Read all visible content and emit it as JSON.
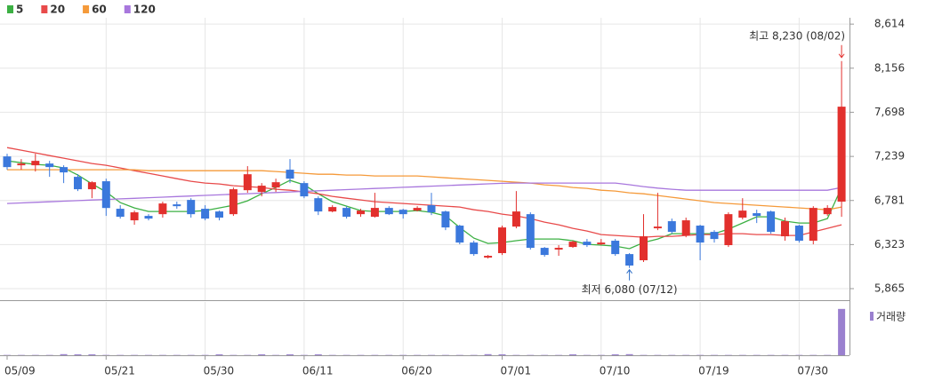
{
  "chart_data": {
    "type": "candlestick",
    "categories": [
      "05/09",
      null,
      null,
      null,
      null,
      null,
      null,
      "05/21",
      null,
      null,
      null,
      null,
      null,
      null,
      "05/30",
      null,
      null,
      null,
      null,
      null,
      null,
      "06/11",
      null,
      null,
      null,
      null,
      null,
      null,
      "06/20",
      null,
      null,
      null,
      null,
      null,
      null,
      "07/01",
      null,
      null,
      null,
      null,
      null,
      null,
      "07/10",
      null,
      null,
      null,
      null,
      null,
      null,
      "07/19",
      null,
      null,
      null,
      null,
      null,
      null,
      "07/30",
      null,
      null,
      null
    ],
    "open": [
      7239,
      7147,
      7147,
      7165,
      7128,
      7027,
      6898,
      6981,
      6695,
      6575,
      6621,
      6639,
      6741,
      6787,
      6695,
      6667,
      6639,
      6888,
      6870,
      6916,
      7101,
      6962,
      6805,
      6667,
      6704,
      6639,
      6612,
      6704,
      6685,
      6676,
      6732,
      6667,
      6520,
      6344,
      6188,
      6234,
      6510,
      6639,
      6289,
      6271,
      6298,
      6353,
      6326,
      6363,
      6224,
      6160,
      6492,
      6566,
      6418,
      6520,
      6455,
      6317,
      6603,
      6649,
      6667,
      6409,
      6520,
      6363,
      6639,
      6769
    ],
    "high": [
      7267,
      7211,
      7267,
      7193,
      7147,
      7054,
      6981,
      7008,
      6732,
      6676,
      6639,
      6769,
      6769,
      6805,
      6732,
      6676,
      6916,
      7138,
      6962,
      7008,
      7211,
      6981,
      6824,
      6732,
      6722,
      6695,
      6861,
      6722,
      6695,
      6722,
      6861,
      6676,
      6529,
      6363,
      6215,
      6520,
      6879,
      6658,
      6298,
      6317,
      6363,
      6381,
      6381,
      6381,
      6234,
      6639,
      6861,
      6593,
      6603,
      6529,
      6473,
      6658,
      6805,
      6685,
      6676,
      6603,
      6529,
      6722,
      6732,
      8230
    ],
    "low": [
      7101,
      7101,
      7082,
      7027,
      6962,
      6879,
      6805,
      6621,
      6593,
      6529,
      6575,
      6603,
      6695,
      6603,
      6575,
      6575,
      6621,
      6861,
      6824,
      6870,
      6962,
      6805,
      6630,
      6658,
      6593,
      6612,
      6603,
      6630,
      6593,
      6667,
      6630,
      6473,
      6326,
      6206,
      6178,
      6215,
      6492,
      6271,
      6197,
      6206,
      6289,
      6298,
      6317,
      6206,
      6080,
      6142,
      6473,
      6436,
      6399,
      6160,
      6344,
      6298,
      6584,
      6547,
      6436,
      6363,
      6344,
      6326,
      6621,
      6612
    ],
    "close": [
      7128,
      7165,
      7193,
      7128,
      7073,
      6898,
      6971,
      6703,
      6612,
      6658,
      6593,
      6750,
      6722,
      6639,
      6593,
      6603,
      6898,
      7054,
      6935,
      6971,
      7008,
      6824,
      6667,
      6713,
      6612,
      6676,
      6704,
      6639,
      6639,
      6704,
      6658,
      6501,
      6344,
      6224,
      6206,
      6501,
      6667,
      6289,
      6215,
      6289,
      6353,
      6317,
      6344,
      6224,
      6105,
      6409,
      6510,
      6455,
      6575,
      6344,
      6381,
      6639,
      6676,
      6621,
      6455,
      6566,
      6363,
      6704,
      6704,
      7756
    ],
    "colors": {
      "up": "#e2302d",
      "down": "#3b78dc"
    },
    "series": [
      {
        "name": "5",
        "color": "#3cb043",
        "values": [
          7193,
          7174,
          7156,
          7147,
          7119,
          7045,
          6953,
          6870,
          6759,
          6704,
          6667,
          6667,
          6667,
          6667,
          6676,
          6704,
          6732,
          6778,
          6851,
          6916,
          6990,
          6944,
          6851,
          6769,
          6722,
          6676,
          6667,
          6667,
          6667,
          6676,
          6658,
          6621,
          6501,
          6390,
          6335,
          6344,
          6363,
          6381,
          6381,
          6381,
          6363,
          6326,
          6317,
          6307,
          6280,
          6344,
          6381,
          6436,
          6436,
          6436,
          6436,
          6483,
          6547,
          6612,
          6612,
          6566,
          6547,
          6547,
          6593,
          6916
        ]
      },
      {
        "name": "20",
        "color": "#e84a4a",
        "values": [
          7331,
          7304,
          7276,
          7248,
          7221,
          7193,
          7165,
          7147,
          7119,
          7091,
          7064,
          7036,
          7008,
          6981,
          6962,
          6953,
          6935,
          6925,
          6916,
          6898,
          6888,
          6870,
          6851,
          6824,
          6805,
          6787,
          6769,
          6759,
          6750,
          6741,
          6732,
          6722,
          6713,
          6685,
          6667,
          6639,
          6621,
          6593,
          6556,
          6529,
          6492,
          6464,
          6427,
          6418,
          6409,
          6399,
          6409,
          6409,
          6418,
          6427,
          6427,
          6436,
          6436,
          6427,
          6427,
          6418,
          6418,
          6455,
          6492,
          6529
        ]
      },
      {
        "name": "60",
        "color": "#f59a3a",
        "values": [
          7101,
          7101,
          7101,
          7101,
          7101,
          7101,
          7101,
          7101,
          7101,
          7101,
          7091,
          7091,
          7091,
          7091,
          7091,
          7091,
          7091,
          7091,
          7091,
          7082,
          7073,
          7064,
          7054,
          7054,
          7045,
          7045,
          7036,
          7036,
          7036,
          7036,
          7027,
          7017,
          7008,
          6999,
          6990,
          6981,
          6971,
          6962,
          6944,
          6935,
          6916,
          6907,
          6888,
          6879,
          6861,
          6851,
          6833,
          6815,
          6796,
          6778,
          6759,
          6750,
          6741,
          6732,
          6722,
          6713,
          6704,
          6695,
          6685,
          6713
        ]
      },
      {
        "name": "120",
        "color": "#a877dd",
        "values": [
          6750,
          6756,
          6762,
          6768,
          6774,
          6780,
          6786,
          6792,
          6798,
          6804,
          6810,
          6816,
          6822,
          6828,
          6834,
          6840,
          6846,
          6852,
          6858,
          6864,
          6870,
          6876,
          6882,
          6888,
          6894,
          6900,
          6906,
          6912,
          6918,
          6924,
          6930,
          6936,
          6942,
          6948,
          6954,
          6960,
          6962,
          6962,
          6962,
          6962,
          6962,
          6962,
          6962,
          6962,
          6945,
          6925,
          6910,
          6898,
          6888,
          6888,
          6888,
          6888,
          6888,
          6888,
          6888,
          6888,
          6888,
          6888,
          6888,
          6916
        ]
      }
    ],
    "volume": {
      "name": "거래량",
      "color": "#9a80cf",
      "values": [
        20000,
        20000,
        20000,
        20000,
        70000,
        60000,
        60000,
        20000,
        20000,
        20000,
        20000,
        20000,
        20000,
        20000,
        20000,
        60000,
        20000,
        20000,
        60000,
        20000,
        60000,
        20000,
        60000,
        20000,
        20000,
        20000,
        20000,
        20000,
        20000,
        20000,
        20000,
        20000,
        20000,
        20000,
        70000,
        60000,
        20000,
        20000,
        20000,
        20000,
        60000,
        20000,
        20000,
        60000,
        70000,
        20000,
        20000,
        20000,
        20000,
        20000,
        20000,
        20000,
        20000,
        20000,
        20000,
        20000,
        20000,
        20000,
        20000,
        3000000
      ],
      "ylim": [
        0,
        3450000
      ]
    },
    "ylim": [
      5745,
      8680
    ],
    "yticks": [
      {
        "value": 5865,
        "label": "5,865"
      },
      {
        "value": 6323,
        "label": "6,323"
      },
      {
        "value": 6781,
        "label": "6,781"
      },
      {
        "value": 7239,
        "label": "7,239"
      },
      {
        "value": 7698,
        "label": "7,698"
      },
      {
        "value": 8156,
        "label": "8,156"
      },
      {
        "value": 8614,
        "label": "8,614"
      }
    ],
    "annotations": [
      "최고 8,230 (08/02)",
      "최저 6,080 (07/12)"
    ],
    "grid": true
  }
}
